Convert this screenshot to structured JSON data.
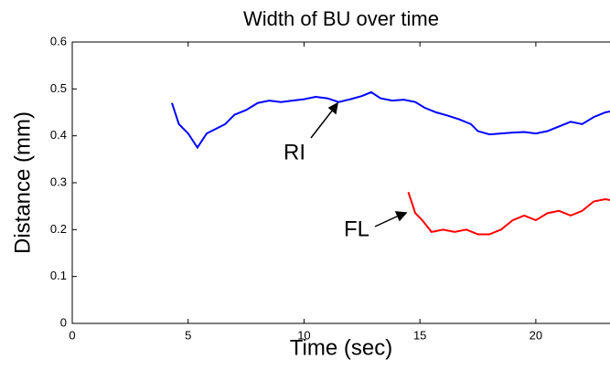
{
  "chart_data": {
    "type": "line",
    "title": "Width of BU over time",
    "xlabel": "Time (sec)",
    "ylabel": "Distance (mm)",
    "xlim": [
      0,
      23.2
    ],
    "xticks": [
      0,
      5,
      10,
      15,
      20
    ],
    "ylim": [
      0,
      0.6
    ],
    "yticks": [
      0,
      0.1,
      0.2,
      0.3,
      0.4,
      0.5,
      0.6
    ],
    "grid": false,
    "annotations": [
      "RI",
      "FL"
    ],
    "series": [
      {
        "color": "#0000ff",
        "x": [
          4.3,
          4.6,
          5.0,
          5.4,
          5.8,
          6.2,
          6.6,
          7.0,
          7.5,
          8.0,
          8.5,
          9.0,
          9.5,
          10.0,
          10.5,
          11.0,
          11.5,
          12.0,
          12.5,
          12.9,
          13.3,
          13.8,
          14.3,
          14.8,
          15.2,
          15.7,
          16.2,
          16.7,
          17.2,
          17.5,
          18.0,
          18.5,
          19.0,
          19.5,
          20.0,
          20.5,
          21.0,
          21.5,
          22.0,
          22.5,
          23.0,
          23.2
        ],
        "values": [
          0.47,
          0.425,
          0.405,
          0.375,
          0.405,
          0.415,
          0.425,
          0.445,
          0.455,
          0.47,
          0.475,
          0.472,
          0.475,
          0.478,
          0.483,
          0.48,
          0.472,
          0.478,
          0.485,
          0.493,
          0.48,
          0.475,
          0.477,
          0.472,
          0.46,
          0.45,
          0.443,
          0.435,
          0.425,
          0.41,
          0.403,
          0.405,
          0.407,
          0.408,
          0.405,
          0.41,
          0.42,
          0.43,
          0.425,
          0.44,
          0.45,
          0.452
        ]
      },
      {
        "color": "#ff0000",
        "x": [
          14.5,
          14.8,
          15.1,
          15.5,
          16.0,
          16.5,
          17.0,
          17.5,
          18.0,
          18.5,
          19.0,
          19.5,
          20.0,
          20.5,
          21.0,
          21.5,
          22.0,
          22.5,
          23.0,
          23.2
        ],
        "values": [
          0.28,
          0.235,
          0.22,
          0.195,
          0.2,
          0.195,
          0.2,
          0.19,
          0.19,
          0.2,
          0.22,
          0.23,
          0.22,
          0.235,
          0.24,
          0.23,
          0.24,
          0.26,
          0.265,
          0.263
        ]
      }
    ]
  }
}
